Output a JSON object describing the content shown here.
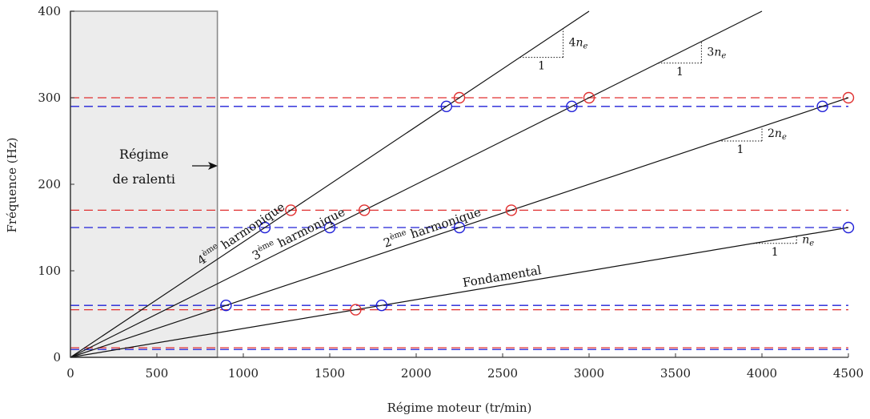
{
  "chart_data": {
    "type": "line",
    "xlabel": "Régime moteur (tr/min)",
    "ylabel": "Fréquence (Hz)",
    "xlim": [
      0,
      4500
    ],
    "ylim": [
      0,
      400
    ],
    "xticks": [
      0,
      500,
      1000,
      1500,
      2000,
      2500,
      3000,
      3500,
      4000,
      4500
    ],
    "yticks": [
      0,
      100,
      200,
      300,
      400
    ],
    "grid": false,
    "idle_region": {
      "x_range": [
        0,
        850
      ],
      "label_line1": "Régime",
      "label_line2": "de ralenti"
    },
    "series": [
      {
        "label": "Fondamental",
        "label_sup": "",
        "label_rest": "",
        "multiplier": 1,
        "x": [
          0,
          4500
        ],
        "y": [
          0,
          150
        ],
        "slope": {
          "run_label": "1",
          "rise_num": "",
          "rise_sym": "n",
          "rise_sub": "e"
        }
      },
      {
        "label": "2",
        "label_sup": "ème",
        "label_rest": " harmonique",
        "multiplier": 2,
        "x": [
          0,
          4500
        ],
        "y": [
          0,
          300
        ],
        "slope": {
          "run_label": "1",
          "rise_num": "2",
          "rise_sym": "n",
          "rise_sub": "e"
        }
      },
      {
        "label": "3",
        "label_sup": "ème",
        "label_rest": " harmonique",
        "multiplier": 3,
        "x": [
          0,
          4000
        ],
        "y": [
          0,
          400
        ],
        "slope": {
          "run_label": "1",
          "rise_num": "3",
          "rise_sym": "n",
          "rise_sub": "e"
        }
      },
      {
        "label": "4",
        "label_sup": "ème",
        "label_rest": " harmonique",
        "multiplier": 4,
        "x": [
          0,
          3000
        ],
        "y": [
          0,
          400
        ],
        "slope": {
          "run_label": "1",
          "rise_num": "4",
          "rise_sym": "n",
          "rise_sub": "e"
        }
      }
    ],
    "reference_lines": [
      {
        "color": "red",
        "y": 300
      },
      {
        "color": "blue",
        "y": 290
      },
      {
        "color": "red",
        "y": 170
      },
      {
        "color": "blue",
        "y": 150
      },
      {
        "color": "blue",
        "y": 60
      },
      {
        "color": "red",
        "y": 55
      },
      {
        "color": "red",
        "y": 11
      },
      {
        "color": "blue",
        "y": 9
      }
    ],
    "markers": [
      {
        "color": "red",
        "x": 4500,
        "y": 300
      },
      {
        "color": "red",
        "x": 3000,
        "y": 300
      },
      {
        "color": "red",
        "x": 2250,
        "y": 300
      },
      {
        "color": "blue",
        "x": 4350,
        "y": 290
      },
      {
        "color": "blue",
        "x": 2900,
        "y": 290
      },
      {
        "color": "blue",
        "x": 2175,
        "y": 290
      },
      {
        "color": "red",
        "x": 1275,
        "y": 170
      },
      {
        "color": "red",
        "x": 1700,
        "y": 170
      },
      {
        "color": "red",
        "x": 2550,
        "y": 170
      },
      {
        "color": "blue",
        "x": 1125,
        "y": 150
      },
      {
        "color": "blue",
        "x": 1500,
        "y": 150
      },
      {
        "color": "blue",
        "x": 2250,
        "y": 150
      },
      {
        "color": "blue",
        "x": 4500,
        "y": 150
      },
      {
        "color": "blue",
        "x": 900,
        "y": 60
      },
      {
        "color": "blue",
        "x": 1800,
        "y": 60
      },
      {
        "color": "red",
        "x": 1650,
        "y": 55
      }
    ]
  },
  "colors": {
    "red": "#e03030",
    "blue": "#2020d8",
    "line": "#111111",
    "idle_fill": "#ececec",
    "idle_stroke": "#8a8a8a"
  }
}
